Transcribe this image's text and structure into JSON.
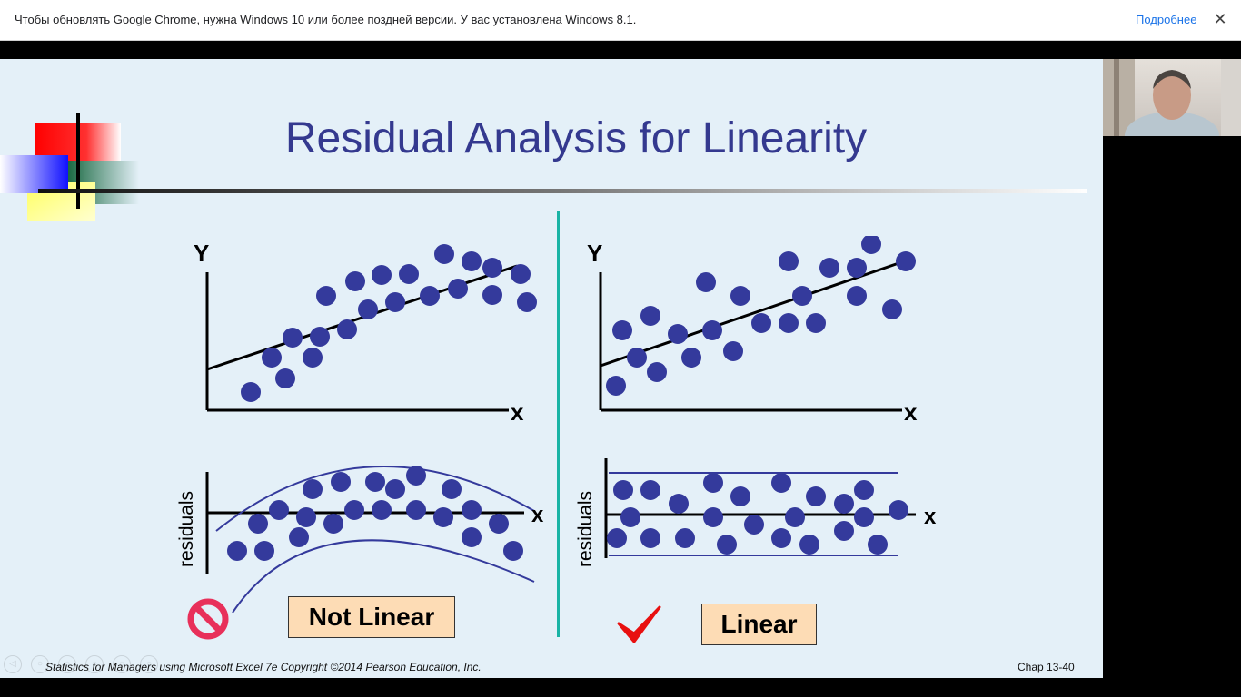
{
  "infobar": {
    "message": "Чтобы обновлять Google Chrome, нужна Windows 10 или более поздней версии. У вас установлена Windows 8.1.",
    "link": "Подробнее",
    "close_glyph": "✕"
  },
  "slide": {
    "title": "Residual Analysis for Linearity",
    "footer": "Statistics for Managers using Microsoft Excel 7e Copyright ©2014 Pearson Education, Inc.",
    "page": "Chap 13-40",
    "left_panel": {
      "y_label": "Y",
      "x_label": "x",
      "residuals_label": "residuals",
      "resid_x_label": "x",
      "verdict": "Not Linear"
    },
    "right_panel": {
      "y_label": "Y",
      "x_label": "x",
      "residuals_label": "residuals",
      "resid_x_label": "x",
      "verdict": "Linear"
    }
  },
  "colors": {
    "dot": "#343a9c",
    "title": "#34398f",
    "divider": "#19b3a5",
    "verdict_bg": "#fddcb5",
    "no_sign": "#e8305a",
    "check": "#e81010"
  },
  "icons": [
    "prohibited-icon",
    "checkmark-icon"
  ]
}
